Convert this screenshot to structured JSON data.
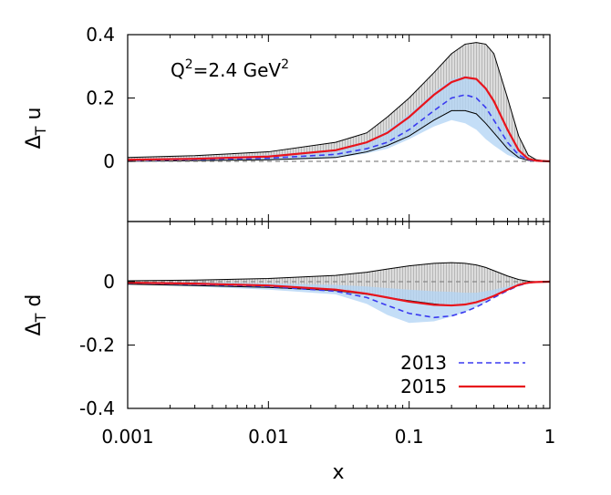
{
  "chart_data": {
    "type": "line",
    "xlabel": "x",
    "xscale": "log",
    "xlim": [
      0.001,
      1
    ],
    "xticks": [
      {
        "value": 0.001,
        "label": "0.001"
      },
      {
        "value": 0.01,
        "label": "0.01"
      },
      {
        "value": 0.1,
        "label": "0.1"
      },
      {
        "value": 1,
        "label": "1"
      }
    ],
    "legend": {
      "location": "lower-right",
      "entries": [
        {
          "label": "2013",
          "style": "dashed",
          "color": "#3a3af0"
        },
        {
          "label": "2015",
          "style": "solid",
          "color": "#e8141c"
        }
      ]
    },
    "colors": {
      "band_2013": "#b4d5f5",
      "band_2015": "#c8c8c8",
      "line_2013": "#3a3af0",
      "line_2015": "#e8141c",
      "zero_line": "#888888"
    },
    "panels": [
      {
        "name": "upper",
        "ylabel_main": "Δ",
        "ylabel_sub": "T",
        "ylabel_tail": " u",
        "ylim": [
          -0.19,
          0.4
        ],
        "yticks": [
          {
            "value": 0,
            "label": "0"
          },
          {
            "value": 0.2,
            "label": "0.2"
          },
          {
            "value": 0.4,
            "label": "0.4"
          }
        ],
        "annotation": {
          "base": "Q",
          "sup1": "2",
          "mid": "=2.4 GeV",
          "sup2": "2"
        },
        "x": [
          0.001,
          0.003,
          0.01,
          0.03,
          0.05,
          0.07,
          0.1,
          0.15,
          0.2,
          0.25,
          0.3,
          0.35,
          0.4,
          0.5,
          0.6,
          0.7,
          0.8,
          1.0
        ],
        "series": [
          {
            "name": "2015",
            "values": [
              0.005,
              0.008,
              0.015,
              0.035,
              0.06,
              0.09,
              0.14,
              0.21,
              0.25,
              0.265,
              0.26,
              0.23,
              0.19,
              0.1,
              0.035,
              0.008,
              0.002,
              0.0
            ]
          },
          {
            "name": "2013",
            "values": [
              0.003,
              0.006,
              0.01,
              0.022,
              0.04,
              0.06,
              0.1,
              0.16,
              0.2,
              0.21,
              0.2,
              0.17,
              0.13,
              0.06,
              0.02,
              0.005,
              0.001,
              0.0
            ]
          }
        ],
        "bands": [
          {
            "name": "2015",
            "upper": [
              0.012,
              0.018,
              0.03,
              0.06,
              0.09,
              0.14,
              0.2,
              0.28,
              0.34,
              0.37,
              0.375,
              0.37,
              0.34,
              0.2,
              0.08,
              0.02,
              0.005,
              0.0
            ],
            "lower": [
              0.0,
              0.002,
              0.005,
              0.012,
              0.03,
              0.05,
              0.08,
              0.13,
              0.16,
              0.16,
              0.15,
              0.12,
              0.09,
              0.04,
              0.012,
              0.003,
              0.001,
              0.0
            ]
          },
          {
            "name": "2013",
            "upper": [
              0.008,
              0.012,
              0.02,
              0.035,
              0.06,
              0.1,
              0.15,
              0.22,
              0.26,
              0.27,
              0.26,
              0.23,
              0.18,
              0.09,
              0.035,
              0.008,
              0.002,
              0.0
            ],
            "lower": [
              0.0,
              0.001,
              0.003,
              0.01,
              0.025,
              0.04,
              0.07,
              0.11,
              0.13,
              0.12,
              0.1,
              0.07,
              0.05,
              0.02,
              0.008,
              0.002,
              0.0,
              0.0
            ]
          }
        ]
      },
      {
        "name": "lower",
        "ylabel_main": "Δ",
        "ylabel_sub": "T",
        "ylabel_tail": " d",
        "ylim": [
          -0.4,
          0.19
        ],
        "yticks": [
          {
            "value": 0,
            "label": "0"
          },
          {
            "value": -0.2,
            "label": "-0.2"
          },
          {
            "value": -0.4,
            "label": "-0.4"
          }
        ],
        "x": [
          0.001,
          0.003,
          0.01,
          0.03,
          0.05,
          0.07,
          0.1,
          0.15,
          0.2,
          0.25,
          0.3,
          0.35,
          0.4,
          0.5,
          0.6,
          0.7,
          0.8,
          1.0
        ],
        "series": [
          {
            "name": "2015",
            "values": [
              -0.003,
              -0.006,
              -0.012,
              -0.025,
              -0.038,
              -0.05,
              -0.063,
              -0.073,
              -0.075,
              -0.072,
              -0.065,
              -0.055,
              -0.045,
              -0.025,
              -0.01,
              -0.003,
              -0.001,
              0.0
            ]
          },
          {
            "name": "2013",
            "values": [
              -0.004,
              -0.008,
              -0.015,
              -0.03,
              -0.05,
              -0.075,
              -0.1,
              -0.113,
              -0.108,
              -0.095,
              -0.08,
              -0.065,
              -0.05,
              -0.028,
              -0.012,
              -0.004,
              -0.001,
              0.0
            ]
          }
        ],
        "bands": [
          {
            "name": "2015",
            "upper": [
              0.003,
              0.005,
              0.01,
              0.02,
              0.03,
              0.04,
              0.05,
              0.058,
              0.06,
              0.058,
              0.053,
              0.045,
              0.035,
              0.018,
              0.007,
              0.002,
              0.0,
              0.0
            ],
            "lower": [
              -0.008,
              -0.012,
              -0.018,
              -0.028,
              -0.04,
              -0.05,
              -0.06,
              -0.07,
              -0.075,
              -0.072,
              -0.065,
              -0.055,
              -0.045,
              -0.025,
              -0.01,
              -0.003,
              -0.001,
              0.0
            ]
          },
          {
            "name": "2013",
            "upper": [
              -0.001,
              -0.002,
              -0.005,
              -0.01,
              -0.015,
              -0.02,
              -0.025,
              -0.03,
              -0.032,
              -0.035,
              -0.035,
              -0.03,
              -0.025,
              -0.015,
              -0.006,
              -0.002,
              0.0,
              0.0
            ],
            "lower": [
              -0.008,
              -0.015,
              -0.025,
              -0.04,
              -0.07,
              -0.105,
              -0.13,
              -0.125,
              -0.11,
              -0.095,
              -0.08,
              -0.065,
              -0.05,
              -0.028,
              -0.012,
              -0.004,
              -0.001,
              0.0
            ]
          }
        ]
      }
    ]
  }
}
